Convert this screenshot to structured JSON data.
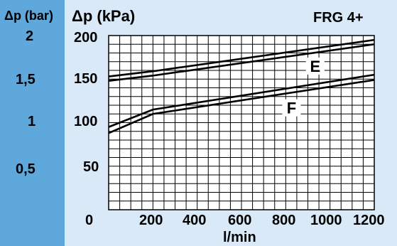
{
  "chart_data": {
    "type": "line",
    "title": "FRG 4+",
    "ylabel_bar": "Δp (bar)",
    "ylabel_kpa": "Δp (kPa)",
    "xlabel": "l/min",
    "xlim": [
      0,
      1200
    ],
    "ylim": [
      0,
      200
    ],
    "x_ticks": [
      "0",
      "200",
      "400",
      "600",
      "800",
      "1000",
      "1200"
    ],
    "y_ticks_kpa": [
      "200",
      "150",
      "100",
      "50"
    ],
    "y_ticks_bar": [
      "2",
      "1,5",
      "1",
      "0,5"
    ],
    "grid": true,
    "series": [
      {
        "name": "E",
        "points": [
          [
            0,
            153
          ],
          [
            200,
            159
          ],
          [
            1200,
            195
          ]
        ]
      },
      {
        "name": "E",
        "points": [
          [
            0,
            148
          ],
          [
            200,
            154
          ],
          [
            1200,
            190
          ]
        ]
      },
      {
        "name": "F",
        "points": [
          [
            0,
            95
          ],
          [
            200,
            115
          ],
          [
            1200,
            155
          ]
        ]
      },
      {
        "name": "F",
        "points": [
          [
            0,
            88
          ],
          [
            200,
            110
          ],
          [
            1200,
            149
          ]
        ]
      }
    ],
    "curve_labels": [
      "E",
      "F"
    ]
  }
}
